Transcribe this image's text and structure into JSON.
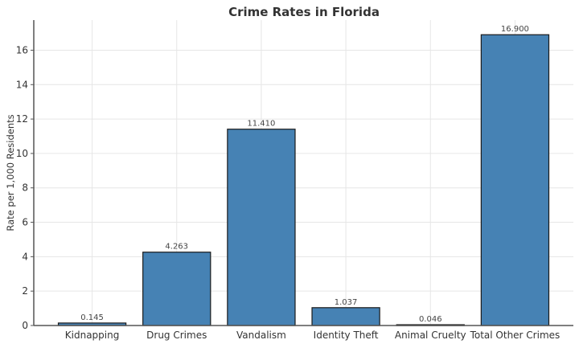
{
  "chart_data": {
    "type": "bar",
    "title": "Crime Rates in Florida",
    "xlabel": "",
    "ylabel": "Rate per 1,000 Residents",
    "categories": [
      "Kidnapping",
      "Drug Crimes",
      "Vandalism",
      "Identity Theft",
      "Animal Cruelty",
      "Total Other Crimes"
    ],
    "values": [
      0.145,
      4.263,
      11.41,
      1.037,
      0.046,
      16.9
    ],
    "data_labels": [
      "0.145",
      "4.263",
      "11.410",
      "1.037",
      "0.046",
      "16.900"
    ],
    "ylim": [
      0,
      17.75
    ],
    "yticks": [
      "0",
      "2",
      "4",
      "6",
      "8",
      "10",
      "12",
      "14",
      "16"
    ],
    "grid": true,
    "bar_color": "#4682b4",
    "edge_color": "#1a1a1a"
  }
}
